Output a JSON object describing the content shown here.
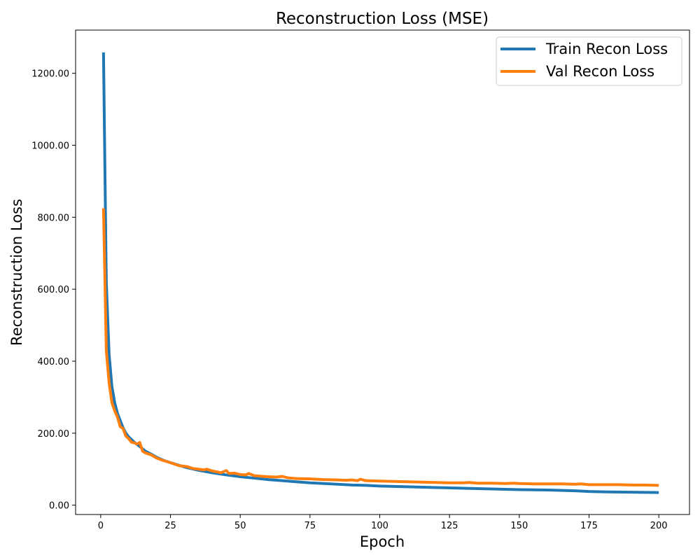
{
  "chart_data": {
    "type": "line",
    "title": "Reconstruction Loss (MSE)",
    "xlabel": "Epoch",
    "ylabel": "Reconstruction Loss",
    "xlim": [
      -9,
      211
    ],
    "ylim": [
      -26,
      1320
    ],
    "x_ticks": [
      0,
      25,
      50,
      75,
      100,
      125,
      150,
      175,
      200
    ],
    "y_ticks": [
      0,
      200,
      400,
      600,
      800,
      1000,
      1200
    ],
    "y_tick_format": "2dp",
    "grid": false,
    "legend_position": "top-right",
    "series": [
      {
        "name": "Train Recon Loss",
        "color": "#1f77b4",
        "points": [
          [
            1,
            1258
          ],
          [
            2,
            620
          ],
          [
            3,
            420
          ],
          [
            4,
            330
          ],
          [
            5,
            285
          ],
          [
            6,
            255
          ],
          [
            7,
            235
          ],
          [
            8,
            215
          ],
          [
            9,
            200
          ],
          [
            10,
            190
          ],
          [
            12,
            175
          ],
          [
            14,
            163
          ],
          [
            16,
            150
          ],
          [
            18,
            142
          ],
          [
            20,
            133
          ],
          [
            22,
            126
          ],
          [
            25,
            118
          ],
          [
            30,
            106
          ],
          [
            35,
            97
          ],
          [
            40,
            90
          ],
          [
            45,
            84
          ],
          [
            50,
            79
          ],
          [
            55,
            75
          ],
          [
            60,
            71
          ],
          [
            65,
            68
          ],
          [
            70,
            65
          ],
          [
            75,
            62
          ],
          [
            80,
            60
          ],
          [
            85,
            58
          ],
          [
            90,
            56
          ],
          [
            95,
            55
          ],
          [
            100,
            53
          ],
          [
            110,
            51
          ],
          [
            120,
            49
          ],
          [
            130,
            47
          ],
          [
            140,
            45
          ],
          [
            150,
            43
          ],
          [
            160,
            42
          ],
          [
            170,
            40
          ],
          [
            175,
            38
          ],
          [
            180,
            37
          ],
          [
            190,
            36
          ],
          [
            200,
            35
          ]
        ]
      },
      {
        "name": "Val Recon Loss",
        "color": "#ff7f0e",
        "points": [
          [
            1,
            825
          ],
          [
            2,
            430
          ],
          [
            3,
            340
          ],
          [
            4,
            285
          ],
          [
            5,
            262
          ],
          [
            6,
            245
          ],
          [
            7,
            218
          ],
          [
            8,
            213
          ],
          [
            9,
            192
          ],
          [
            10,
            185
          ],
          [
            11,
            175
          ],
          [
            12,
            173
          ],
          [
            13,
            170
          ],
          [
            14,
            174
          ],
          [
            15,
            150
          ],
          [
            16,
            145
          ],
          [
            18,
            140
          ],
          [
            20,
            131
          ],
          [
            22,
            125
          ],
          [
            25,
            118
          ],
          [
            28,
            110
          ],
          [
            30,
            108
          ],
          [
            31,
            107
          ],
          [
            33,
            102
          ],
          [
            35,
            100
          ],
          [
            37,
            98
          ],
          [
            38,
            100
          ],
          [
            40,
            95
          ],
          [
            42,
            92
          ],
          [
            43,
            90
          ],
          [
            44,
            93
          ],
          [
            45,
            96
          ],
          [
            46,
            88
          ],
          [
            48,
            89
          ],
          [
            50,
            85
          ],
          [
            52,
            84
          ],
          [
            53,
            88
          ],
          [
            55,
            82
          ],
          [
            58,
            80
          ],
          [
            60,
            79
          ],
          [
            63,
            78
          ],
          [
            65,
            80
          ],
          [
            67,
            76
          ],
          [
            70,
            74
          ],
          [
            75,
            73
          ],
          [
            80,
            71
          ],
          [
            85,
            70
          ],
          [
            88,
            69
          ],
          [
            90,
            70
          ],
          [
            92,
            68
          ],
          [
            93,
            72
          ],
          [
            95,
            68
          ],
          [
            100,
            67
          ],
          [
            105,
            66
          ],
          [
            110,
            65
          ],
          [
            115,
            64
          ],
          [
            120,
            63
          ],
          [
            125,
            62
          ],
          [
            130,
            62
          ],
          [
            132,
            63
          ],
          [
            135,
            61
          ],
          [
            140,
            61
          ],
          [
            145,
            60
          ],
          [
            148,
            61
          ],
          [
            150,
            60
          ],
          [
            155,
            59
          ],
          [
            160,
            59
          ],
          [
            165,
            59
          ],
          [
            170,
            58
          ],
          [
            172,
            59
          ],
          [
            175,
            57
          ],
          [
            180,
            57
          ],
          [
            185,
            57
          ],
          [
            190,
            56
          ],
          [
            195,
            56
          ],
          [
            200,
            55
          ]
        ]
      }
    ]
  }
}
